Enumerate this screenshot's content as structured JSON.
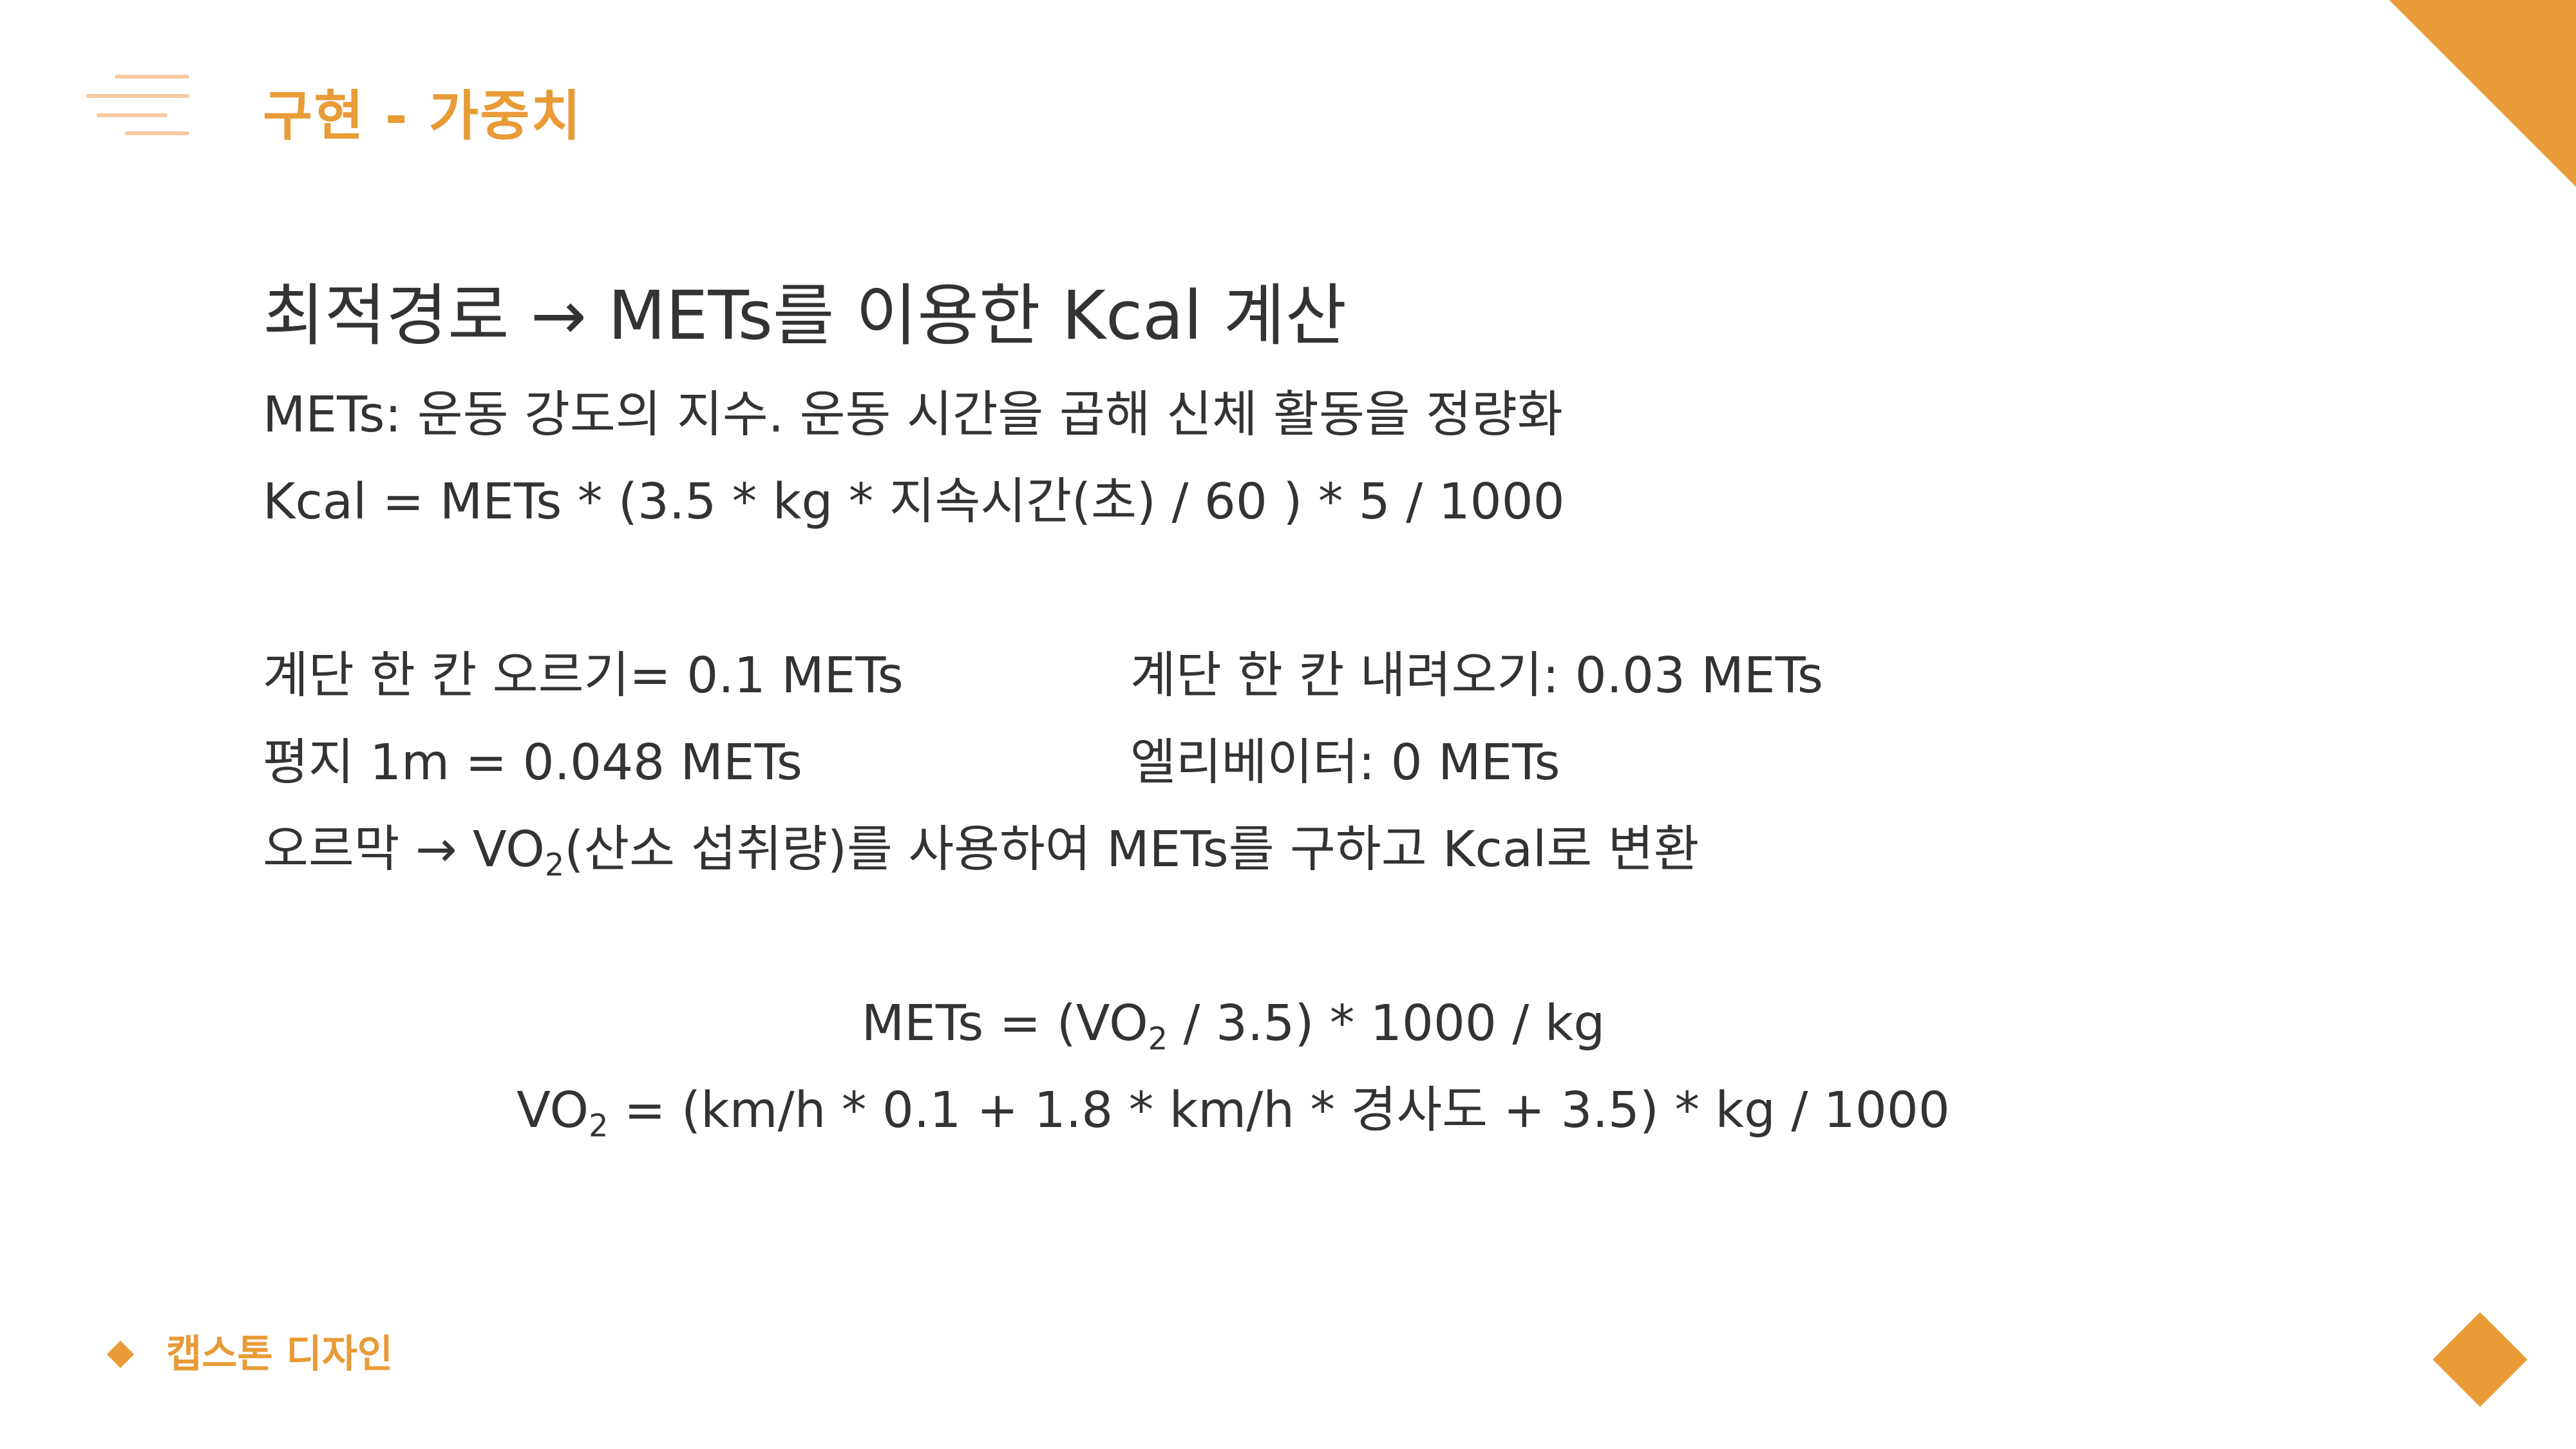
{
  "header": {
    "title": "구현 - 가중치",
    "menu_icon": "menu-lines-icon",
    "accent_color": "#E89B36"
  },
  "content": {
    "subtitle": "최적경로 → METs를 이용한 Kcal 계산",
    "mets_definition": "METs: 운동 강도의 지수. 운동 시간을 곱해 신체 활동을 정량화",
    "kcal_formula": "Kcal = METs * (3.5 * kg * 지속시간(초) / 60 ) * 5 / 1000",
    "stairs_up": "계단 한 칸 오르기= 0.1 METs",
    "stairs_down": "계단 한 칸 내려오기: 0.03 METs",
    "flat_ground": "평지 1m = 0.048 METs",
    "elevator": "엘리베이터: 0 METs",
    "uphill": {
      "before_sub": "오르막 → VO",
      "sub": "2",
      "after_sub": "(산소 섭취량)를 사용하여 METs를 구하고 Kcal로 변환"
    },
    "formula_mets": {
      "before_sub": "METs = (VO",
      "sub": "2",
      "after_sub": " / 3.5) * 1000 / kg"
    },
    "formula_vo2": {
      "before_sub": "VO",
      "sub": "2",
      "after_sub": " = (km/h * 0.1 + 1.8 * km/h * 경사도 + 3.5) * kg / 1000"
    }
  },
  "footer": {
    "label": "캡스톤 디자인",
    "bullet_icon": "diamond-icon"
  }
}
